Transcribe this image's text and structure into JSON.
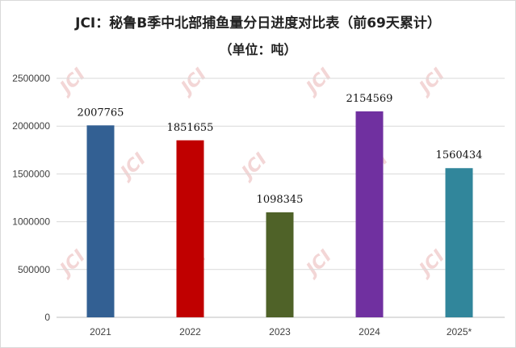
{
  "chart_data": {
    "type": "bar",
    "title": "JCI：秘鲁B季中北部捕鱼量分日进度对比表（前69天累计）",
    "subtitle": "（单位：吨）",
    "categories": [
      "2021",
      "2022",
      "2023",
      "2024",
      "2025*"
    ],
    "values": [
      2007765,
      1851655,
      1098345,
      2154569,
      1560434
    ],
    "data_labels": [
      "2007765",
      "1851655",
      "1098345",
      "2154569",
      "1560434"
    ],
    "colors": [
      "#336093",
      "#C00000",
      "#4F6228",
      "#7030A0",
      "#31869B"
    ],
    "ylim": [
      0,
      2500000
    ],
    "yticks": [
      0,
      500000,
      1000000,
      1500000,
      2000000,
      2500000
    ],
    "ytick_labels": [
      "0",
      "500000",
      "1000000",
      "1500000",
      "2000000",
      "2500000"
    ],
    "grid": true,
    "xlabel": "",
    "ylabel": ""
  },
  "watermark": "JCI"
}
